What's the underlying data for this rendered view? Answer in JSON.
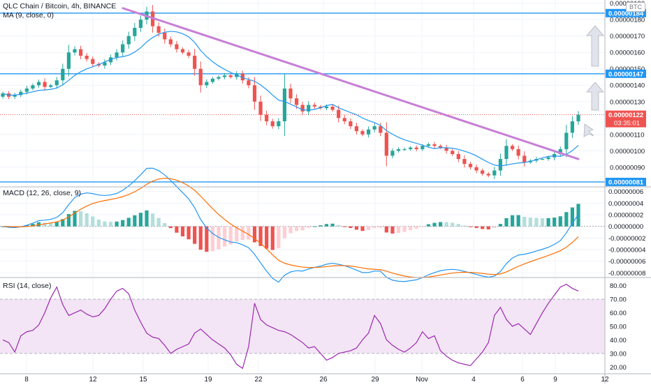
{
  "header": {
    "symbol_line": "QLC Chain / Bitcoin, 4h, BINANCE",
    "ma_label": "MA (9, close, 0)",
    "currency_badge": "BTC"
  },
  "colors": {
    "up": "#26a69a",
    "down": "#ef5350",
    "ma": "#2196f3",
    "trendline": "#c77fd6",
    "hline": "#2196f3",
    "macd_line": "#2196f3",
    "signal_line": "#ff6d00",
    "rsi_line": "#9c27b0",
    "rsi_band": "#f3e5f5"
  },
  "chart_data": [
    {
      "type": "candlestick",
      "title": "QLC Chain / Bitcoin, 4h, BINANCE",
      "indicator": "MA (9, close, 0)",
      "x_ticks": [
        "8",
        "12",
        "15",
        "19",
        "22",
        "26",
        "29",
        "Nov",
        "4",
        "6",
        "9",
        "12"
      ],
      "y_ticks": [
        "0.00000190",
        "0.00000180",
        "0.00000170",
        "0.00000160",
        "0.00000150",
        "0.00000140",
        "0.00000130",
        "0.00000110",
        "0.00000100",
        "0.00000090"
      ],
      "ylim": [
        7.8e-07,
        1.92e-06
      ],
      "horizontal_levels": [
        {
          "label": "0.00000184",
          "value": 1.84e-06
        },
        {
          "label": "0.00000147",
          "value": 1.47e-06
        },
        {
          "label": "0.00000081",
          "value": 8.1e-07
        }
      ],
      "current_price": {
        "label": "0.00000122",
        "value": 1.22e-06,
        "countdown": "03:35:01"
      },
      "trendline": {
        "from": {
          "x": "13",
          "y": 1.87e-06
        },
        "to": {
          "x": "10",
          "y": 9.5e-07
        }
      },
      "close_series": [
        135,
        133,
        134,
        136,
        138,
        140,
        142,
        139,
        140,
        143,
        150,
        160,
        162,
        158,
        156,
        153,
        152,
        154,
        157,
        160,
        165,
        170,
        175,
        180,
        185,
        176,
        172,
        168,
        165,
        162,
        160,
        158,
        150,
        140,
        142,
        144,
        145,
        146,
        145,
        147,
        143,
        140,
        130,
        122,
        118,
        115,
        118,
        138,
        132,
        128,
        124,
        128,
        127,
        126,
        127,
        125,
        120,
        118,
        115,
        112,
        110,
        113,
        115,
        111,
        97,
        100,
        101,
        101,
        102,
        101,
        103,
        104,
        103,
        102,
        100,
        98,
        95,
        92,
        90,
        88,
        86,
        85,
        88,
        95,
        103,
        101,
        97,
        93,
        94,
        95,
        95,
        96,
        98,
        101,
        111,
        118,
        122
      ]
    },
    {
      "type": "histogram+line",
      "title": "MACD (12, 26, close, 9)",
      "y_ticks": [
        "0.00000006",
        "0.00000004",
        "0.00000002",
        "0.00000000",
        "-0.00000002",
        "-0.00000004",
        "-0.00000006",
        "-0.00000008"
      ],
      "ylim": [
        -8.8e-08,
        6.8e-08
      ]
    },
    {
      "type": "line",
      "title": "RSI (14, close)",
      "y_ticks": [
        "80.00",
        "70.00",
        "60.00",
        "50.00",
        "40.00",
        "30.00",
        "20.00"
      ],
      "ylim": [
        15,
        86
      ],
      "band": [
        30,
        70
      ],
      "values": [
        40,
        38,
        31,
        43,
        46,
        47,
        51,
        60,
        71,
        79,
        66,
        58,
        60,
        62,
        59,
        57,
        58,
        63,
        70,
        76,
        78,
        74,
        62,
        53,
        45,
        42,
        41,
        36,
        30,
        33,
        35,
        37,
        45,
        48,
        44,
        40,
        37,
        34,
        29,
        22,
        19,
        35,
        67,
        55,
        51,
        49,
        47,
        46,
        44,
        41,
        38,
        34,
        35,
        30,
        25,
        27,
        30,
        31,
        32,
        34,
        40,
        45,
        58,
        52,
        40,
        36,
        33,
        31,
        34,
        38,
        46,
        41,
        43,
        32,
        28,
        25,
        23,
        22,
        21,
        26,
        31,
        38,
        58,
        64,
        55,
        50,
        52,
        48,
        44,
        52,
        60,
        67,
        73,
        79,
        81,
        78,
        76
      ]
    }
  ],
  "x_axis_labels": [
    "8",
    "12",
    "15",
    "19",
    "22",
    "26",
    "29",
    "Nov",
    "4",
    "6",
    "9",
    "12"
  ],
  "price_tags": [
    "0.00000184",
    "0.00000147",
    "0.00000122",
    "03:35:01",
    "0.00000081"
  ]
}
